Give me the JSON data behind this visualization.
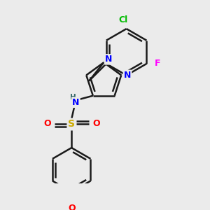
{
  "background_color": "#ebebeb",
  "atom_colors": {
    "C": "#000000",
    "N": "#0000ff",
    "O": "#ff0000",
    "S": "#ccaa00",
    "Cl": "#00bb00",
    "F": "#ff00ff",
    "H": "#336666"
  },
  "bond_color": "#1a1a1a",
  "bond_width": 1.8,
  "figsize": [
    3.0,
    3.0
  ],
  "dpi": 100
}
